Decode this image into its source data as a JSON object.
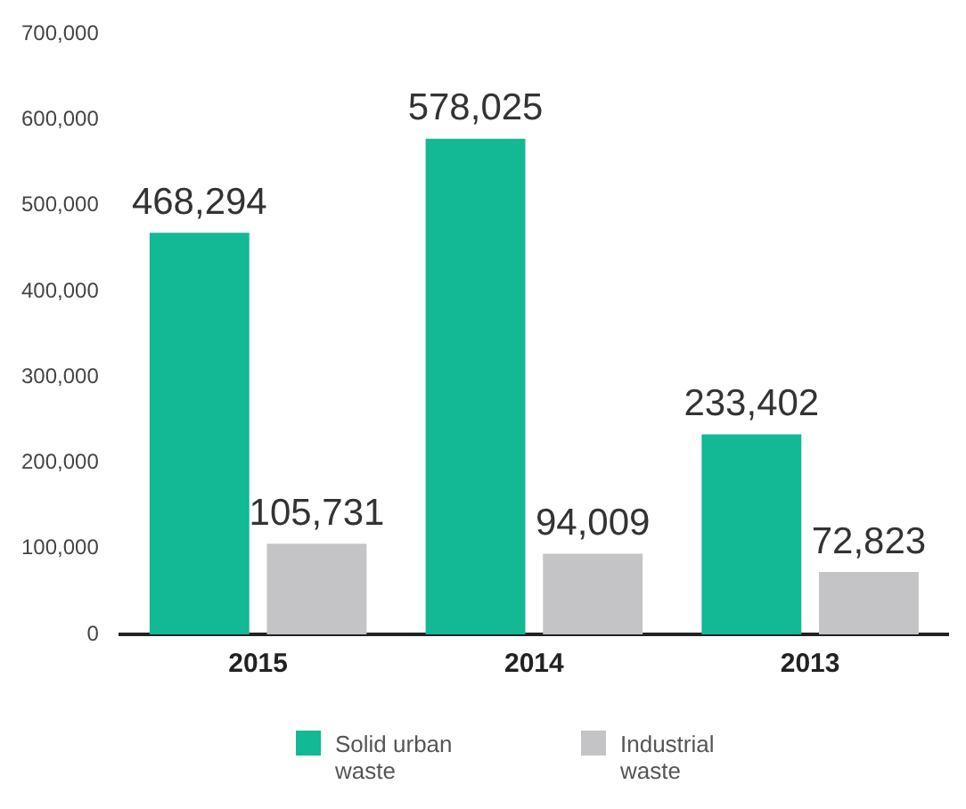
{
  "chart_data": {
    "type": "bar",
    "categories": [
      "2015",
      "2014",
      "2013"
    ],
    "series": [
      {
        "name": "Solid urban waste",
        "color": "#13b894",
        "values": [
          468294,
          578025,
          233402
        ],
        "value_labels": [
          "468,294",
          "578,025",
          "233,402"
        ]
      },
      {
        "name": "Industrial waste",
        "color": "#c4c4c6",
        "values": [
          105731,
          94009,
          72823
        ],
        "value_labels": [
          "105,731",
          "94,009",
          "72,823"
        ]
      }
    ],
    "ylim": [
      0,
      700000
    ],
    "yticks": [
      0,
      {
        "value": 100000,
        "label": "100,000"
      },
      {
        "value": 200000,
        "label": "200,000"
      },
      {
        "value": 300000,
        "label": "300,000"
      },
      {
        "value": 400000,
        "label": "400,000"
      },
      {
        "value": 500000,
        "label": "500,000"
      },
      {
        "value": 600000,
        "label": "600,000"
      },
      {
        "value": 700000,
        "label": "700,000"
      }
    ],
    "grid": false,
    "legend": "bottom"
  }
}
